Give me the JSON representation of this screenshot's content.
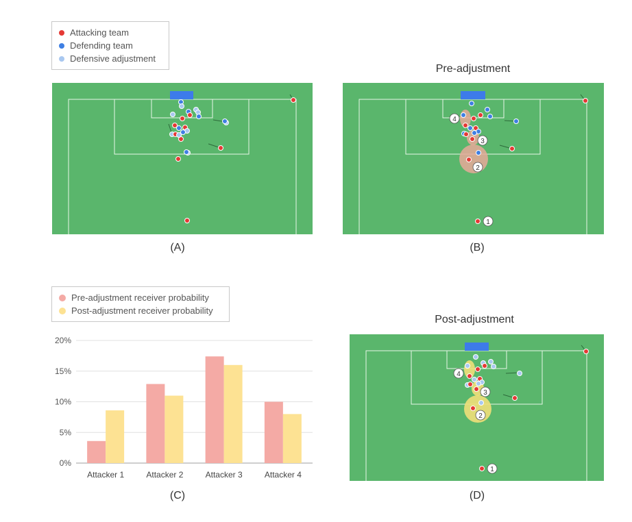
{
  "legend_players": {
    "items": [
      {
        "label": "Attacking team",
        "color": "#e53935"
      },
      {
        "label": "Defending team",
        "color": "#3f7fe3"
      },
      {
        "label": "Defensive adjustment",
        "color": "#a9c8f0"
      }
    ]
  },
  "panels": {
    "a": {
      "caption": "(A)"
    },
    "b": {
      "caption": "(B)",
      "title": "Pre-adjustment"
    },
    "c": {
      "caption": "(C)"
    },
    "d": {
      "caption": "(D)",
      "title": "Post-adjustment"
    }
  },
  "colors": {
    "pitch": "#5ab66c",
    "goal": "#3d7bea",
    "attacker": "#e53935",
    "defender": "#3f7fe3",
    "adjusted": "#a9c8f0",
    "pre": "#f4aaa5",
    "post": "#fde293"
  },
  "receiver_labels": [
    "1",
    "2",
    "3",
    "4"
  ],
  "chart_data": {
    "type": "bar",
    "categories": [
      "Attacker 1",
      "Attacker 2",
      "Attacker 3",
      "Attacker 4"
    ],
    "series": [
      {
        "name": "Pre-adjustment receiver probability",
        "values": [
          3.6,
          12.9,
          17.4,
          10.0
        ],
        "color": "#f4aaa5"
      },
      {
        "name": "Post-adjustment receiver probability",
        "values": [
          8.6,
          11.0,
          16.0,
          8.0
        ],
        "color": "#fde293"
      }
    ],
    "yticks": [
      "0%",
      "5%",
      "10%",
      "15%",
      "20%"
    ],
    "ylim": [
      0,
      20
    ],
    "title": "",
    "xlabel": "",
    "ylabel": ""
  }
}
